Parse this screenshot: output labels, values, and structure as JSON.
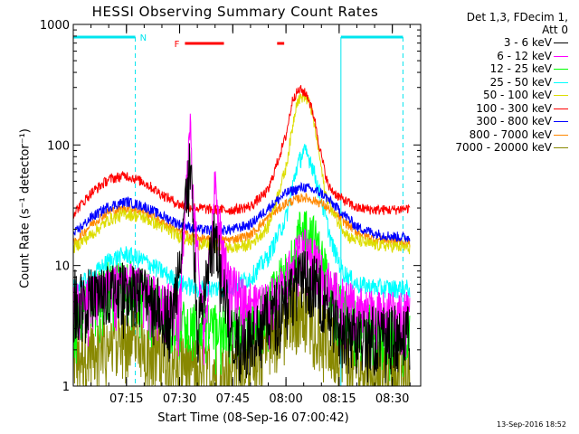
{
  "chart_data": {
    "type": "line",
    "title": "HESSI Observing Summary Count Rates",
    "xlabel": "Start Time (08-Sep-16 07:00:42)",
    "ylabel": "Count Rate (s⁻¹ detector⁻¹)",
    "y_scale": "log",
    "ylim": [
      1,
      1000
    ],
    "y_ticks": [
      "1",
      "10",
      "100",
      "1000"
    ],
    "x_range_minutes": [
      0,
      98
    ],
    "x_ticks": [
      "07:15",
      "07:30",
      "07:45",
      "08:00",
      "08:15",
      "08:30"
    ],
    "annotations": {
      "night_marker": "N",
      "flare_marker": "F",
      "timestamp": "13-Sep-2016 18:52"
    },
    "legend_header": [
      "Det 1,3, FDecim 1,",
      "Att 0"
    ],
    "legend_position": "top-right",
    "series": [
      {
        "name": "3 - 6 keV",
        "color": "#000000",
        "points": [
          [
            3,
            6
          ],
          [
            10,
            6.5
          ],
          [
            15,
            7
          ],
          [
            20,
            6.5
          ],
          [
            28,
            4
          ],
          [
            33,
            80
          ],
          [
            35,
            3
          ],
          [
            40,
            20
          ],
          [
            45,
            2.5
          ],
          [
            50,
            3
          ],
          [
            55,
            4
          ],
          [
            60,
            6
          ],
          [
            65,
            9
          ],
          [
            68,
            8
          ],
          [
            72,
            5
          ],
          [
            75,
            3
          ]
        ]
      },
      {
        "name": "6 - 12 keV",
        "color": "#ff00ff",
        "points": [
          [
            0,
            5
          ],
          [
            5,
            6
          ],
          [
            10,
            7.5
          ],
          [
            15,
            8
          ],
          [
            20,
            7
          ],
          [
            25,
            5.5
          ],
          [
            30,
            4.8
          ],
          [
            33,
            175
          ],
          [
            34,
            30
          ],
          [
            37,
            3
          ],
          [
            40,
            52
          ],
          [
            41,
            25
          ],
          [
            44,
            8
          ],
          [
            48,
            6
          ],
          [
            52,
            5
          ],
          [
            55,
            5.5
          ],
          [
            58,
            7
          ],
          [
            62,
            12
          ],
          [
            65,
            15
          ],
          [
            68,
            13
          ],
          [
            71,
            9
          ],
          [
            75,
            6
          ],
          [
            80,
            5
          ],
          [
            85,
            4.5
          ],
          [
            90,
            4.5
          ],
          [
            95,
            5
          ]
        ]
      },
      {
        "name": "12 - 25 keV",
        "color": "#00ff00",
        "points": [
          [
            0,
            3.6
          ],
          [
            5,
            5.5
          ],
          [
            10,
            7.5
          ],
          [
            15,
            8
          ],
          [
            20,
            6.5
          ],
          [
            25,
            4.5
          ],
          [
            30,
            3.6
          ],
          [
            35,
            3.3
          ],
          [
            40,
            3.3
          ],
          [
            45,
            3.3
          ],
          [
            50,
            3.5
          ],
          [
            55,
            5
          ],
          [
            60,
            10
          ],
          [
            63,
            18
          ],
          [
            65,
            23
          ],
          [
            68,
            18
          ],
          [
            71,
            10
          ],
          [
            75,
            5
          ],
          [
            80,
            3.5
          ],
          [
            85,
            3.2
          ],
          [
            90,
            3
          ],
          [
            95,
            3
          ]
        ]
      },
      {
        "name": "25 - 50 keV",
        "color": "#00ffff",
        "points": [
          [
            0,
            6.5
          ],
          [
            5,
            8
          ],
          [
            10,
            11
          ],
          [
            15,
            12.5
          ],
          [
            20,
            11
          ],
          [
            25,
            9
          ],
          [
            30,
            7.2
          ],
          [
            35,
            6.5
          ],
          [
            40,
            6.5
          ],
          [
            45,
            6.8
          ],
          [
            50,
            8
          ],
          [
            55,
            12
          ],
          [
            60,
            25
          ],
          [
            63,
            65
          ],
          [
            65,
            90
          ],
          [
            67,
            75
          ],
          [
            70,
            35
          ],
          [
            73,
            15
          ],
          [
            76,
            9
          ],
          [
            80,
            7
          ],
          [
            85,
            6.6
          ],
          [
            90,
            6.5
          ],
          [
            95,
            6.5
          ]
        ]
      },
      {
        "name": "50 - 100 keV",
        "color": "#dddd00",
        "points": [
          [
            0,
            14
          ],
          [
            5,
            18
          ],
          [
            10,
            24
          ],
          [
            15,
            27
          ],
          [
            20,
            25
          ],
          [
            25,
            21
          ],
          [
            30,
            17.5
          ],
          [
            35,
            15.5
          ],
          [
            40,
            14.2
          ],
          [
            45,
            14
          ],
          [
            50,
            15
          ],
          [
            55,
            21
          ],
          [
            60,
            65
          ],
          [
            63,
            230
          ],
          [
            65,
            260
          ],
          [
            67,
            210
          ],
          [
            69,
            100
          ],
          [
            71,
            40
          ],
          [
            74,
            25
          ],
          [
            78,
            17
          ],
          [
            84,
            15
          ],
          [
            90,
            14.5
          ],
          [
            95,
            14
          ]
        ]
      },
      {
        "name": "100 - 300 keV",
        "color": "#ff0000",
        "points": [
          [
            0,
            27
          ],
          [
            5,
            40
          ],
          [
            10,
            52
          ],
          [
            15,
            56
          ],
          [
            20,
            49
          ],
          [
            25,
            39
          ],
          [
            30,
            32
          ],
          [
            35,
            30
          ],
          [
            40,
            29
          ],
          [
            45,
            29
          ],
          [
            50,
            31
          ],
          [
            55,
            42
          ],
          [
            60,
            120
          ],
          [
            62,
            250
          ],
          [
            64,
            290
          ],
          [
            66,
            260
          ],
          [
            68,
            170
          ],
          [
            70,
            80
          ],
          [
            72,
            45
          ],
          [
            75,
            37
          ],
          [
            80,
            30
          ],
          [
            85,
            29
          ],
          [
            90,
            29
          ],
          [
            95,
            30
          ]
        ]
      },
      {
        "name": "300 - 800 keV",
        "color": "#0000ff",
        "points": [
          [
            0,
            18
          ],
          [
            5,
            25
          ],
          [
            10,
            31
          ],
          [
            15,
            34
          ],
          [
            20,
            31
          ],
          [
            25,
            26
          ],
          [
            30,
            22
          ],
          [
            35,
            20
          ],
          [
            40,
            19.5
          ],
          [
            45,
            20
          ],
          [
            50,
            22
          ],
          [
            55,
            30
          ],
          [
            60,
            40
          ],
          [
            65,
            45
          ],
          [
            70,
            40
          ],
          [
            75,
            29
          ],
          [
            80,
            21
          ],
          [
            85,
            18.5
          ],
          [
            90,
            17.5
          ],
          [
            95,
            17
          ]
        ]
      },
      {
        "name": "800 - 7000 keV",
        "color": "#ff8800",
        "points": [
          [
            0,
            15
          ],
          [
            5,
            22
          ],
          [
            10,
            28
          ],
          [
            15,
            30
          ],
          [
            20,
            28
          ],
          [
            25,
            23
          ],
          [
            30,
            19
          ],
          [
            35,
            17
          ],
          [
            40,
            16
          ],
          [
            45,
            16.5
          ],
          [
            50,
            18
          ],
          [
            55,
            25
          ],
          [
            60,
            33
          ],
          [
            65,
            37
          ],
          [
            70,
            33
          ],
          [
            75,
            25
          ],
          [
            80,
            19
          ],
          [
            85,
            16.5
          ],
          [
            90,
            16
          ],
          [
            95,
            15.5
          ]
        ]
      },
      {
        "name": "7000 - 20000 keV",
        "color": "#888800",
        "points": [
          [
            0,
            1.7
          ],
          [
            5,
            2.2
          ],
          [
            10,
            2.6
          ],
          [
            15,
            2.8
          ],
          [
            20,
            2.5
          ],
          [
            25,
            2
          ],
          [
            30,
            1.7
          ],
          [
            35,
            1.6
          ],
          [
            40,
            1.5
          ],
          [
            45,
            1.5
          ],
          [
            50,
            1.8
          ],
          [
            55,
            2.6
          ],
          [
            60,
            4
          ],
          [
            63,
            5
          ],
          [
            65,
            4.8
          ],
          [
            68,
            3.8
          ],
          [
            72,
            2.6
          ],
          [
            76,
            1.9
          ],
          [
            80,
            1.6
          ],
          [
            85,
            1.5
          ],
          [
            90,
            1.5
          ],
          [
            95,
            1.5
          ]
        ]
      }
    ]
  }
}
